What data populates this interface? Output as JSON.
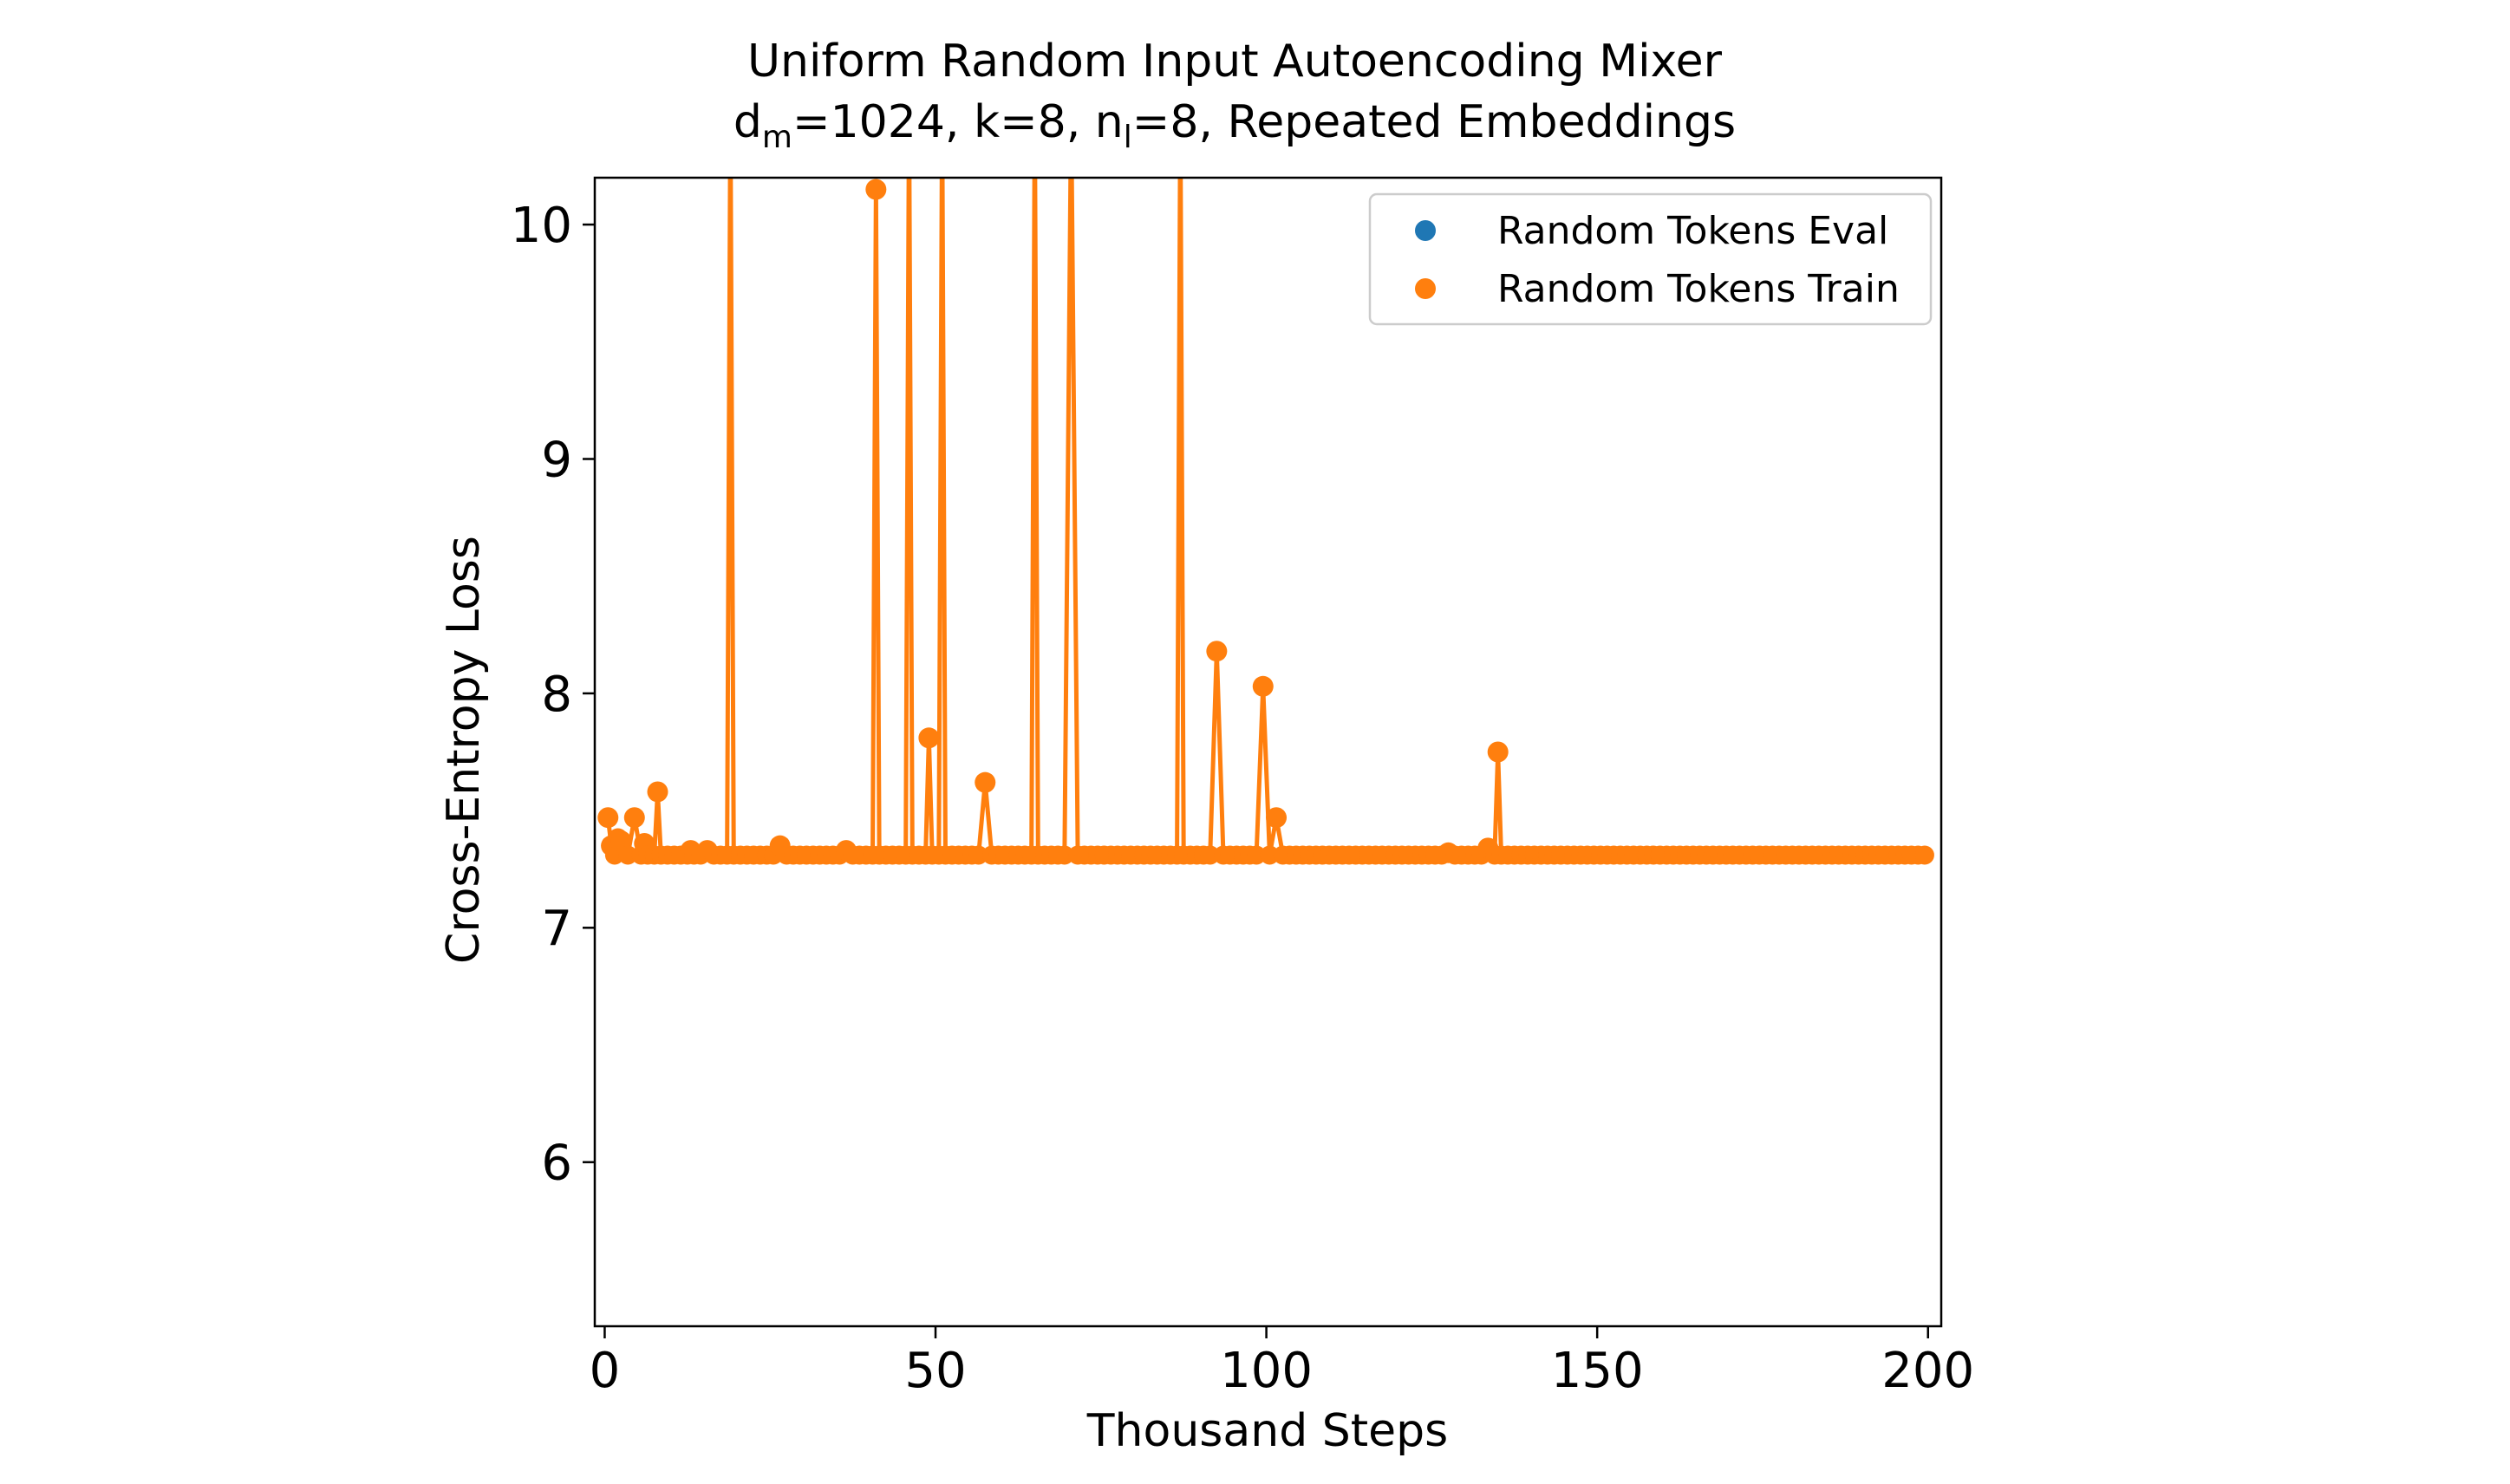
{
  "chart_data": {
    "type": "line",
    "title_line1": "Uniform Random Input Autoencoding Mixer",
    "title_line2": {
      "d": "d",
      "d_sub": "m",
      "middle": "=1024, k=8, n",
      "n_sub": "l",
      "rest": "=8, Repeated Embeddings"
    },
    "xlabel": "Thousand Steps",
    "ylabel": "Cross-Entropy Loss",
    "xlim": [
      -1.5,
      202
    ],
    "ylim": [
      5.3,
      10.2
    ],
    "xticks": [
      0,
      50,
      100,
      150,
      200
    ],
    "xtick_labels": [
      "0",
      "50",
      "100",
      "150",
      "200"
    ],
    "yticks": [
      6,
      7,
      8,
      9,
      10
    ],
    "ytick_labels": [
      "6",
      "7",
      "8",
      "9",
      "10"
    ],
    "legend_position": "upper-right",
    "colors": {
      "eval": "#1f77b4",
      "train": "#ff7f0e"
    },
    "series": [
      {
        "name": "Random Tokens Eval",
        "key": "eval",
        "points": [
          [
            0.5,
            7.34
          ],
          [
            1.5,
            7.33
          ],
          [
            3,
            7.33
          ],
          [
            5,
            7.32
          ],
          [
            8,
            7.32
          ],
          [
            10,
            7.32
          ],
          [
            13,
            7.32
          ],
          [
            16,
            7.32
          ],
          [
            19,
            7.32
          ],
          [
            26,
            7.32
          ],
          [
            30,
            7.32
          ],
          [
            37,
            7.32
          ],
          [
            41,
            7.32
          ],
          [
            46,
            7.32
          ],
          [
            49,
            7.32
          ],
          [
            51,
            7.32
          ],
          [
            57,
            7.32
          ],
          [
            65,
            7.32
          ],
          [
            70,
            7.32
          ],
          [
            87,
            7.32
          ],
          [
            92,
            7.32
          ],
          [
            99,
            7.32
          ],
          [
            101,
            7.32
          ],
          [
            110,
            7.32
          ],
          [
            120,
            7.32
          ],
          [
            127,
            7.32
          ],
          [
            133,
            7.32
          ],
          [
            135,
            7.32
          ],
          [
            145,
            7.32
          ],
          [
            160,
            7.32
          ],
          [
            175,
            7.32
          ],
          [
            190,
            7.32
          ],
          [
            200,
            7.32
          ]
        ]
      },
      {
        "name": "Random Tokens Train",
        "key": "train",
        "base": 7.31,
        "x_range": [
          0.5,
          200
        ],
        "x_step": 1,
        "spikes": [
          [
            0.5,
            7.47
          ],
          [
            1,
            7.35
          ],
          [
            2,
            7.38
          ],
          [
            2.5,
            7.37
          ],
          [
            4.5,
            7.47
          ],
          [
            6,
            7.36
          ],
          [
            8,
            7.58
          ],
          [
            13,
            7.33
          ],
          [
            15.5,
            7.33
          ],
          [
            19,
            10.5
          ],
          [
            26.5,
            7.35
          ],
          [
            36.5,
            7.33
          ],
          [
            41,
            10.15
          ],
          [
            46,
            10.5
          ],
          [
            49,
            7.81
          ],
          [
            51,
            10.5
          ],
          [
            57.5,
            7.62
          ],
          [
            65,
            10.5
          ],
          [
            70.5,
            10.5
          ],
          [
            87,
            10.5
          ],
          [
            92.5,
            8.18
          ],
          [
            99.5,
            8.03
          ],
          [
            101.5,
            7.47
          ],
          [
            127.5,
            7.32
          ],
          [
            133.5,
            7.34
          ],
          [
            135,
            7.75
          ]
        ]
      }
    ]
  }
}
